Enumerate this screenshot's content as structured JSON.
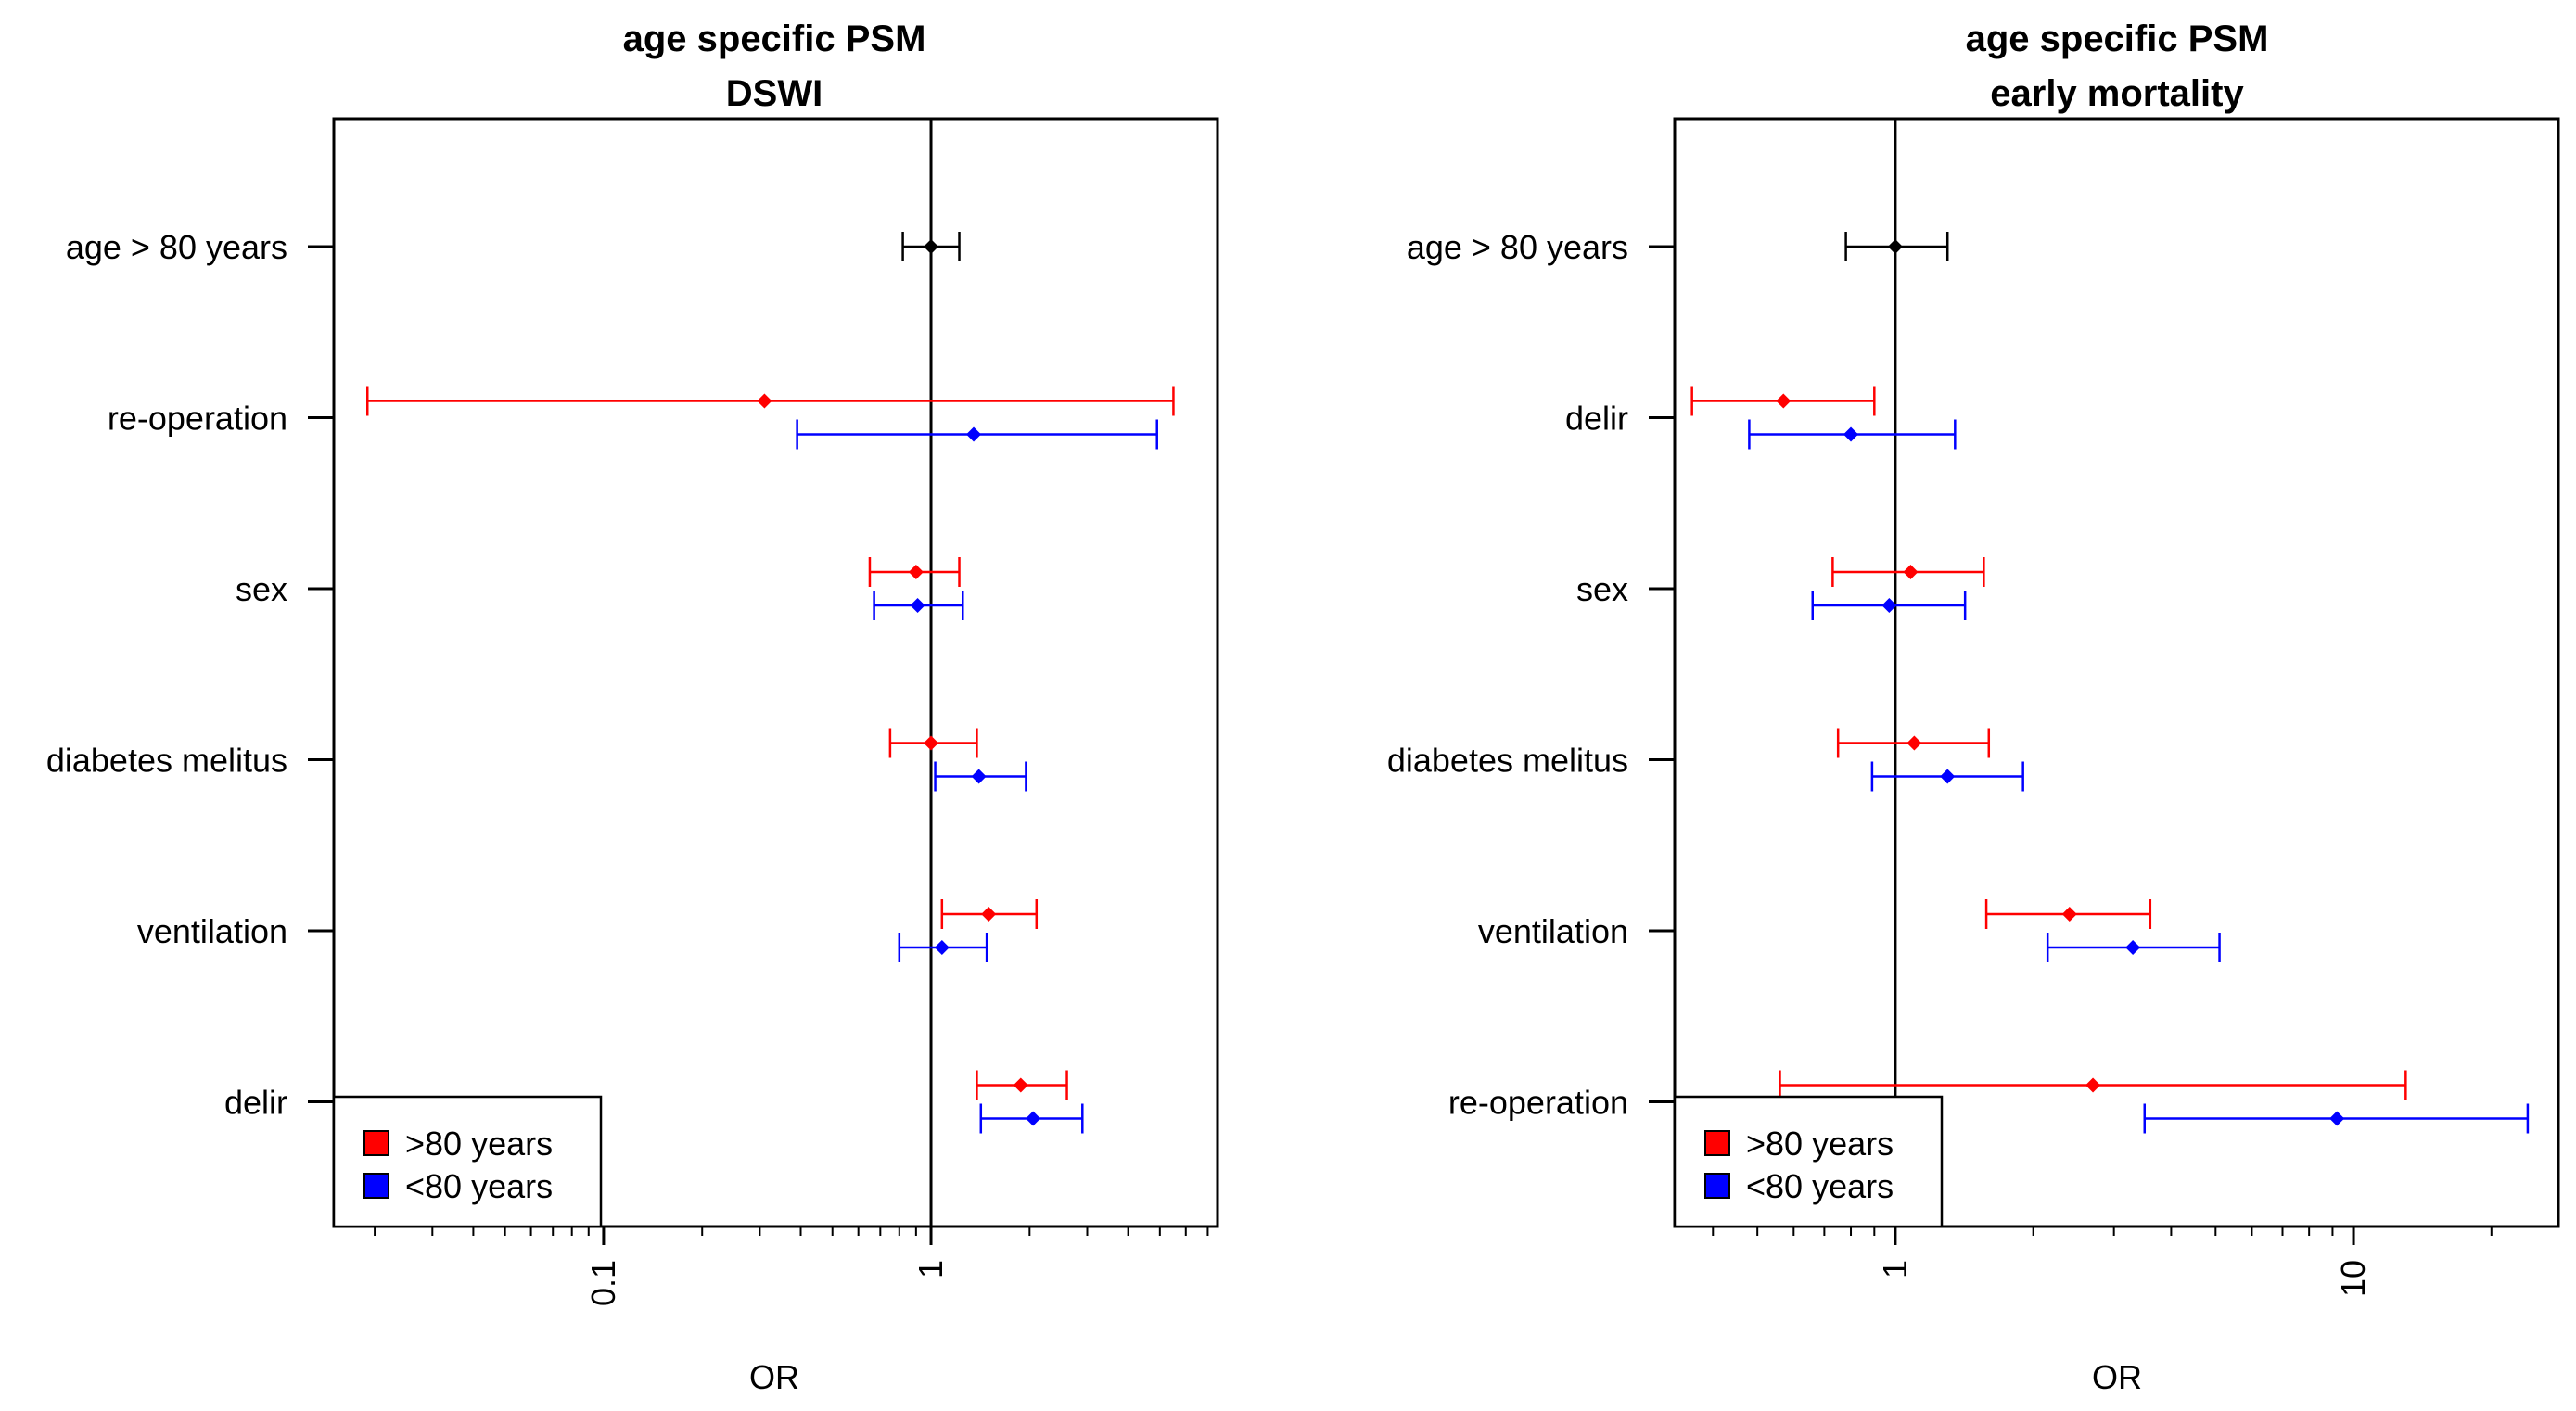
{
  "legend": [
    {
      "label": ">80 years",
      "color": "#ff0000"
    },
    {
      "label": "<80 years",
      "color": "#0000ff"
    }
  ],
  "ref_color": "#000000",
  "chart_data": [
    {
      "type": "forest",
      "title": [
        "age specific PSM",
        "DSWI"
      ],
      "xlabel": "OR",
      "xscale": "log",
      "xlim": [
        0.015,
        7.5
      ],
      "ticks": [
        0.01,
        0.1,
        1
      ],
      "tick_labels": [
        "0.1",
        "1"
      ],
      "reference_line": 1,
      "legend_position": "bottom-left",
      "rows": [
        {
          "label": "age > 80 years",
          "estimates": [
            {
              "series": "reference",
              "or": 1.0,
              "lo": 0.82,
              "hi": 1.22
            }
          ]
        },
        {
          "label": "re-operation",
          "estimates": [
            {
              "series": ">80 years",
              "or": 0.31,
              "lo": 0.019,
              "hi": 5.5
            },
            {
              "series": "<80 years",
              "or": 1.35,
              "lo": 0.39,
              "hi": 4.9
            }
          ]
        },
        {
          "label": "sex",
          "estimates": [
            {
              "series": ">80 years",
              "or": 0.9,
              "lo": 0.65,
              "hi": 1.22
            },
            {
              "series": "<80 years",
              "or": 0.91,
              "lo": 0.67,
              "hi": 1.25
            }
          ]
        },
        {
          "label": "diabetes melitus",
          "estimates": [
            {
              "series": ">80 years",
              "or": 1.0,
              "lo": 0.75,
              "hi": 1.38
            },
            {
              "series": "<80 years",
              "or": 1.4,
              "lo": 1.03,
              "hi": 1.95
            }
          ]
        },
        {
          "label": "ventilation",
          "estimates": [
            {
              "series": ">80 years",
              "or": 1.5,
              "lo": 1.08,
              "hi": 2.1
            },
            {
              "series": "<80 years",
              "or": 1.08,
              "lo": 0.8,
              "hi": 1.48
            }
          ]
        },
        {
          "label": "delir",
          "estimates": [
            {
              "series": ">80 years",
              "or": 1.88,
              "lo": 1.38,
              "hi": 2.6
            },
            {
              "series": "<80 years",
              "or": 2.05,
              "lo": 1.42,
              "hi": 2.9
            }
          ]
        }
      ]
    },
    {
      "type": "forest",
      "title": [
        "age specific PSM",
        "early mortality"
      ],
      "xlabel": "OR",
      "xscale": "log",
      "xlim": [
        0.33,
        28
      ],
      "ticks": [
        1,
        10
      ],
      "tick_labels": [
        "1",
        "10"
      ],
      "reference_line": 1,
      "legend_position": "bottom-left",
      "rows": [
        {
          "label": "age > 80 years",
          "estimates": [
            {
              "series": "reference",
              "or": 1.0,
              "lo": 0.78,
              "hi": 1.3
            }
          ]
        },
        {
          "label": "delir",
          "estimates": [
            {
              "series": ">80 years",
              "or": 0.57,
              "lo": 0.36,
              "hi": 0.9
            },
            {
              "series": "<80 years",
              "or": 0.8,
              "lo": 0.48,
              "hi": 1.35
            }
          ]
        },
        {
          "label": "sex",
          "estimates": [
            {
              "series": ">80 years",
              "or": 1.08,
              "lo": 0.73,
              "hi": 1.56
            },
            {
              "series": "<80 years",
              "or": 0.97,
              "lo": 0.66,
              "hi": 1.42
            }
          ]
        },
        {
          "label": "diabetes melitus",
          "estimates": [
            {
              "series": ">80 years",
              "or": 1.1,
              "lo": 0.75,
              "hi": 1.6
            },
            {
              "series": "<80 years",
              "or": 1.3,
              "lo": 0.89,
              "hi": 1.9
            }
          ]
        },
        {
          "label": "ventilation",
          "estimates": [
            {
              "series": ">80 years",
              "or": 2.4,
              "lo": 1.58,
              "hi": 3.6
            },
            {
              "series": "<80 years",
              "or": 3.3,
              "lo": 2.15,
              "hi": 5.1
            }
          ]
        },
        {
          "label": "re-operation",
          "estimates": [
            {
              "series": ">80 years",
              "or": 2.7,
              "lo": 0.56,
              "hi": 13.0
            },
            {
              "series": "<80 years",
              "or": 9.2,
              "lo": 3.5,
              "hi": 24.0
            }
          ]
        }
      ]
    }
  ]
}
